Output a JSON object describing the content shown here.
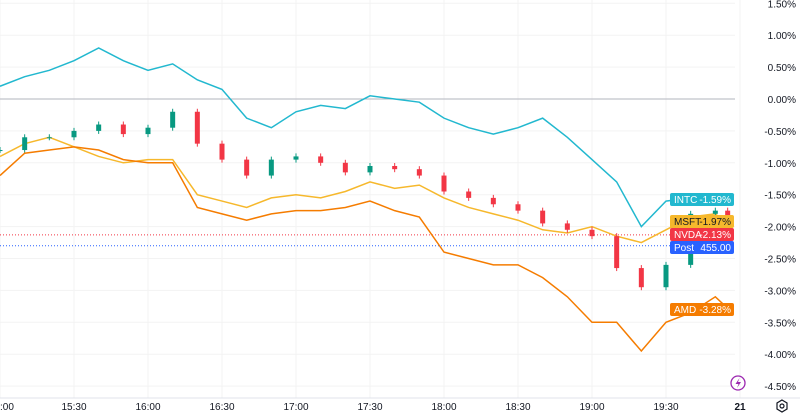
{
  "chart_data": {
    "type": "line",
    "title": "",
    "x": [
      "15:00",
      "15:10",
      "15:20",
      "15:30",
      "15:40",
      "15:50",
      "16:00",
      "16:10",
      "16:20",
      "16:30",
      "16:40",
      "16:50",
      "17:00",
      "17:10",
      "17:20",
      "17:30",
      "17:40",
      "17:50",
      "18:00",
      "18:10",
      "18:20",
      "18:30",
      "18:40",
      "18:50",
      "19:00",
      "19:10",
      "19:20",
      "19:30",
      "19:40",
      "19:50",
      "19:55"
    ],
    "x_tick_labels": [
      ":00",
      "15:30",
      "16:00",
      "16:30",
      "17:00",
      "17:30",
      "18:00",
      "18:30",
      "19:00",
      "19:30",
      "21"
    ],
    "y_tick_labels": [
      "1.50%",
      "1.00%",
      "0.50%",
      "0.00%",
      "-0.50%",
      "-1.00%",
      "-1.50%",
      "-2.00%",
      "-2.50%",
      "-3.00%",
      "-3.50%",
      "-4.00%",
      "-4.50%"
    ],
    "ylim": [
      -4.6,
      1.6
    ],
    "y_unit": "%",
    "zero_line": true,
    "series": [
      {
        "name": "INTC",
        "style": "line",
        "color": "#22b8cf",
        "last_label": "-1.59%",
        "values": [
          0.2,
          0.35,
          0.45,
          0.6,
          0.8,
          0.6,
          0.45,
          0.55,
          0.3,
          0.15,
          -0.3,
          -0.45,
          -0.2,
          -0.1,
          -0.15,
          0.05,
          0.0,
          -0.05,
          -0.3,
          -0.45,
          -0.55,
          -0.45,
          -0.3,
          -0.6,
          -0.95,
          -1.3,
          -2.0,
          -1.6,
          -1.55,
          -1.5,
          -1.59
        ]
      },
      {
        "name": "MSFT",
        "style": "line",
        "color": "#f6b82c",
        "last_label": "-1.97%",
        "values": [
          -0.9,
          -0.7,
          -0.6,
          -0.75,
          -0.9,
          -1.0,
          -0.95,
          -0.95,
          -1.5,
          -1.6,
          -1.7,
          -1.55,
          -1.5,
          -1.55,
          -1.45,
          -1.3,
          -1.4,
          -1.35,
          -1.55,
          -1.7,
          -1.8,
          -1.9,
          -2.05,
          -2.1,
          -2.0,
          -2.15,
          -2.25,
          -2.05,
          -1.85,
          -1.8,
          -1.97
        ]
      },
      {
        "name": "NVDA",
        "style": "candles",
        "color": "#f23645",
        "up_color": "#089981",
        "last_label": "-2.13%",
        "values": [
          -0.8,
          -0.6,
          -0.6,
          -0.5,
          -0.4,
          -0.55,
          -0.45,
          -0.2,
          -0.7,
          -0.95,
          -1.2,
          -0.95,
          -0.9,
          -1.0,
          -1.15,
          -1.05,
          -1.1,
          -1.2,
          -1.45,
          -1.55,
          -1.65,
          -1.75,
          -1.95,
          -2.05,
          -2.15,
          -2.65,
          -2.95,
          -2.6,
          -1.8,
          -1.75,
          -2.13
        ]
      },
      {
        "name": "AMD",
        "style": "line",
        "color": "#f57c00",
        "last_label": "-3.28%",
        "values": [
          -1.2,
          -0.85,
          -0.8,
          -0.75,
          -0.8,
          -0.95,
          -1.0,
          -1.0,
          -1.7,
          -1.8,
          -1.9,
          -1.8,
          -1.75,
          -1.75,
          -1.7,
          -1.6,
          -1.75,
          -1.85,
          -2.4,
          -2.5,
          -2.6,
          -2.6,
          -2.8,
          -3.1,
          -3.5,
          -3.5,
          -3.95,
          -3.5,
          -3.35,
          -3.1,
          -3.28
        ]
      }
    ],
    "post_label": {
      "name": "Post",
      "value": "455.00",
      "color": "#2962ff",
      "level_pct": -2.3
    }
  },
  "icons": {
    "lightning": "lightning-icon",
    "settings": "settings-icon"
  }
}
